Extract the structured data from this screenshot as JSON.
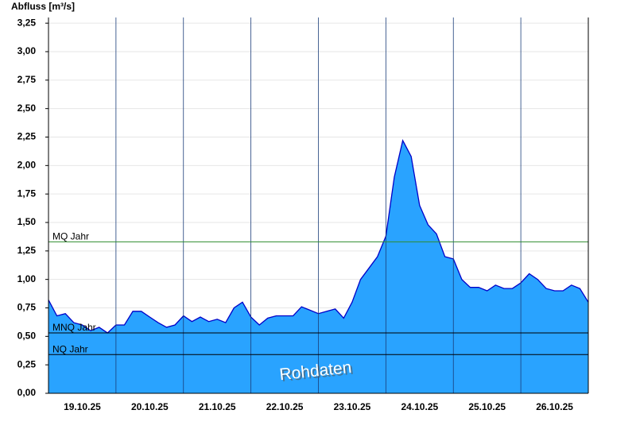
{
  "chart_data": {
    "type": "area",
    "y_axis_label": "Abfluss [m³/s]",
    "categories": [
      null,
      null,
      null,
      null,
      "19.10.25",
      null,
      null,
      null,
      null,
      null,
      null,
      null,
      "20.10.25",
      null,
      null,
      null,
      null,
      null,
      null,
      null,
      "21.10.25",
      null,
      null,
      null,
      null,
      null,
      null,
      null,
      "22.10.25",
      null,
      null,
      null,
      null,
      null,
      null,
      null,
      "23.10.25",
      null,
      null,
      null,
      null,
      null,
      null,
      null,
      "24.10.25",
      null,
      null,
      null,
      null,
      null,
      null,
      null,
      "25.10.25",
      null,
      null,
      null,
      null,
      null,
      null,
      null,
      "26.10.25",
      null,
      null,
      null,
      null
    ],
    "series": [
      {
        "name": null,
        "color": "#29a3ff",
        "line_color": "#0000c8",
        "values": [
          0.82,
          0.68,
          0.7,
          0.62,
          0.6,
          0.55,
          0.58,
          0.53,
          0.6,
          0.6,
          0.72,
          0.72,
          0.67,
          0.62,
          0.58,
          0.6,
          0.68,
          0.63,
          0.67,
          0.63,
          0.65,
          0.62,
          0.75,
          0.8,
          0.67,
          0.6,
          0.66,
          0.68,
          0.68,
          0.68,
          0.76,
          0.73,
          0.7,
          0.72,
          0.74,
          0.66,
          0.8,
          1.0,
          1.1,
          1.2,
          1.38,
          1.9,
          2.22,
          2.08,
          1.65,
          1.48,
          1.4,
          1.2,
          1.18,
          1.0,
          0.93,
          0.93,
          0.9,
          0.95,
          0.92,
          0.92,
          0.97,
          1.05,
          1.0,
          0.92,
          0.9,
          0.9,
          0.95,
          0.92,
          0.8
        ]
      }
    ],
    "ylim": [
      0,
      3.3
    ],
    "yticks": [
      {
        "value": 0,
        "label": "0,00"
      },
      {
        "value": 0.25,
        "label": "0,25"
      },
      {
        "value": 0.5,
        "label": "0,50"
      },
      {
        "value": 0.75,
        "label": "0,75"
      },
      {
        "value": 1,
        "label": "1,00"
      },
      {
        "value": 1.25,
        "label": "1,25"
      },
      {
        "value": 1.5,
        "label": "1,50"
      },
      {
        "value": 1.75,
        "label": "1,75"
      },
      {
        "value": 2,
        "label": "2,00"
      },
      {
        "value": 2.25,
        "label": "2,25"
      },
      {
        "value": 2.5,
        "label": "2,50"
      },
      {
        "value": 2.75,
        "label": "2,75"
      },
      {
        "value": 3,
        "label": "3,00"
      },
      {
        "value": 3.25,
        "label": "3,25"
      }
    ],
    "grid": true,
    "reference_lines": [
      {
        "label": "MQ Jahr",
        "value": 1.33,
        "color": "#2e8b2e"
      },
      {
        "label": "MNQ Jahr",
        "value": 0.53,
        "color": "#000000"
      },
      {
        "label": "NQ Jahr",
        "value": 0.34,
        "color": "#000000"
      }
    ],
    "annotation": "Rohdaten"
  }
}
